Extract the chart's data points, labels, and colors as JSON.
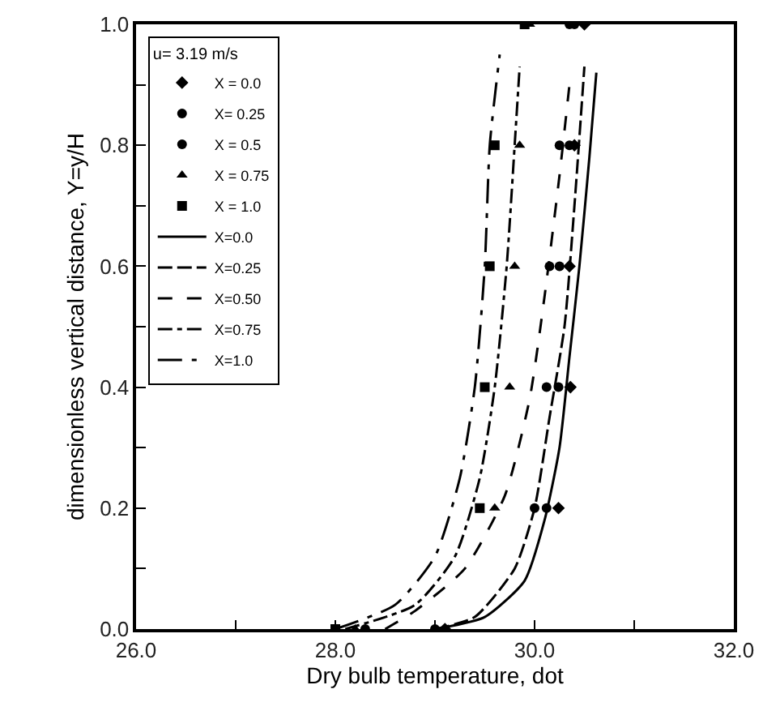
{
  "chart_data": {
    "type": "line",
    "xlabel": "Dry bulb temperature, dot",
    "ylabel": "dimensionless vertical distance, Y=y/H",
    "legend_title": "u= 3.19 m/s",
    "legend": "top left",
    "grid": false,
    "xlim": [
      26,
      32
    ],
    "xticks": [
      {
        "value": 26,
        "label": "26.0"
      },
      {
        "value": 27,
        "label": null
      },
      {
        "value": 28,
        "label": "28.0"
      },
      {
        "value": 29,
        "label": null
      },
      {
        "value": 30,
        "label": "30.0"
      },
      {
        "value": 31,
        "label": null
      },
      {
        "value": 32,
        "label": "32.0"
      }
    ],
    "ylim": [
      0,
      1
    ],
    "yticks": [
      {
        "value": 0,
        "label": "0.0"
      },
      {
        "value": 0.1,
        "label": null
      },
      {
        "value": 0.2,
        "label": "0.2"
      },
      {
        "value": 0.3,
        "label": null
      },
      {
        "value": 0.4,
        "label": "0.4"
      },
      {
        "value": 0.5,
        "label": null
      },
      {
        "value": 0.6,
        "label": "0.6"
      },
      {
        "value": 0.7,
        "label": null
      },
      {
        "value": 0.8,
        "label": "0.8"
      },
      {
        "value": 0.9,
        "label": null
      },
      {
        "value": 1,
        "label": "1.0"
      }
    ],
    "series": [
      {
        "type": "scatter",
        "name": "X = 0.0",
        "color": "#000000",
        "marker": "diamond",
        "x": [
          29.1,
          30.24,
          30.36,
          30.35,
          30.4,
          30.5
        ],
        "values": [
          0,
          0.2,
          0.4,
          0.6,
          0.8,
          1.0
        ]
      },
      {
        "type": "scatter",
        "name": "X= 0.25",
        "color": "#000000",
        "marker": "circle",
        "x": [
          29.0,
          30.0,
          30.24,
          30.25,
          30.35,
          30.4
        ],
        "values": [
          0,
          0.2,
          0.4,
          0.6,
          0.8,
          1.0
        ]
      },
      {
        "type": "scatter",
        "name": "X = 0.5",
        "color": "#000000",
        "marker": "circle",
        "x": [
          28.3,
          30.12,
          30.12,
          30.15,
          30.25,
          30.35
        ],
        "values": [
          0,
          0.2,
          0.4,
          0.6,
          0.8,
          1.0
        ]
      },
      {
        "type": "scatter",
        "name": "X = 0.75",
        "color": "#000000",
        "marker": "triangle",
        "x": [
          28.2,
          29.6,
          29.75,
          29.8,
          29.85,
          29.95
        ],
        "values": [
          0,
          0.2,
          0.4,
          0.6,
          0.8,
          1.0
        ]
      },
      {
        "type": "scatter",
        "name": "X = 1.0",
        "color": "#000000",
        "marker": "square",
        "x": [
          28.0,
          29.45,
          29.5,
          29.55,
          29.6,
          29.9
        ],
        "values": [
          0,
          0.2,
          0.4,
          0.6,
          0.8,
          1.0
        ]
      },
      {
        "name": "X=0.0",
        "color": "#000000",
        "line_style": "solid",
        "x": [
          29.0,
          29.5,
          29.9,
          30.1,
          30.25,
          30.35,
          30.45,
          30.55,
          30.62
        ],
        "values": [
          0,
          0.02,
          0.08,
          0.18,
          0.3,
          0.45,
          0.6,
          0.78,
          0.92
        ]
      },
      {
        "name": "X=0.25",
        "color": "#000000",
        "line_style": "longdash",
        "x": [
          29.0,
          29.4,
          29.8,
          30.0,
          30.15,
          30.3,
          30.4,
          30.5
        ],
        "values": [
          0,
          0.02,
          0.1,
          0.2,
          0.35,
          0.5,
          0.7,
          0.93
        ]
      },
      {
        "name": "X=0.50",
        "color": "#000000",
        "line_style": "dashed",
        "x": [
          28.5,
          28.8,
          29.3,
          29.7,
          29.95,
          30.1,
          30.25,
          30.35
        ],
        "values": [
          0,
          0.03,
          0.1,
          0.22,
          0.38,
          0.55,
          0.75,
          0.9
        ]
      },
      {
        "name": "X=0.75",
        "color": "#000000",
        "line_style": "dashdot",
        "x": [
          28.1,
          28.8,
          29.2,
          29.45,
          29.6,
          29.72,
          29.8,
          29.85
        ],
        "values": [
          0,
          0.04,
          0.12,
          0.25,
          0.4,
          0.6,
          0.8,
          0.93
        ]
      },
      {
        "name": "X=1.0",
        "color": "#000000",
        "line_style": "longdashdot",
        "x": [
          28.0,
          28.6,
          29.0,
          29.25,
          29.4,
          29.5,
          29.55,
          29.65
        ],
        "values": [
          0,
          0.04,
          0.12,
          0.25,
          0.4,
          0.6,
          0.8,
          0.95
        ]
      }
    ]
  }
}
